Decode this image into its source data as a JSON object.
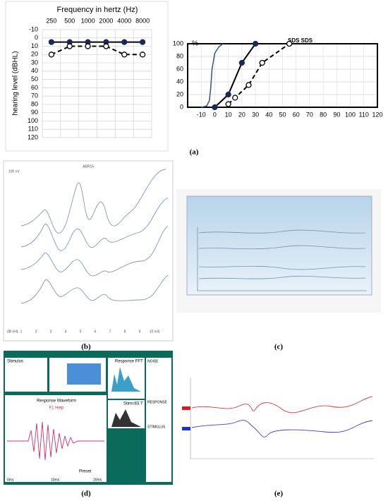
{
  "chart_data": [
    {
      "type": "line",
      "title": "Frequency in hertz (Hz)",
      "y_label": "hearing level (dBHL)",
      "categories": [
        "250",
        "500",
        "1000",
        "2000",
        "4000",
        "8000"
      ],
      "x_axis_position": "top",
      "ylim": [
        -10,
        120
      ],
      "y_inverted": true,
      "yticks": [
        -10,
        0,
        10,
        20,
        30,
        40,
        50,
        60,
        70,
        80,
        90,
        100,
        110,
        120
      ],
      "grid": true,
      "series": [
        {
          "color": "#000000",
          "marker_color": "#1b2a55",
          "marker": "filled",
          "dashed": false,
          "values": [
            5,
            5,
            5,
            5,
            5,
            5
          ]
        },
        {
          "color": "#000000",
          "marker_color": "#000000",
          "marker": "open",
          "dashed": true,
          "values": [
            20,
            10,
            10,
            10,
            20,
            20
          ]
        }
      ]
    },
    {
      "type": "line",
      "y_label": "%",
      "annotation": "SDS SDS",
      "xlim": [
        -20,
        120
      ],
      "xticks": [
        -10,
        0,
        10,
        20,
        30,
        40,
        50,
        60,
        70,
        80,
        90,
        100,
        110,
        120
      ],
      "ylim": [
        0,
        100
      ],
      "yticks": [
        0,
        20,
        40,
        60,
        80,
        100
      ],
      "grid": true,
      "series": [
        {
          "color": "#34518c",
          "marker": "none",
          "dashed": false,
          "x": [
            -10,
            -6,
            -4,
            -3,
            -2,
            0,
            3,
            6
          ],
          "values": [
            0,
            2,
            10,
            30,
            60,
            85,
            95,
            100
          ]
        },
        {
          "color": "#000000",
          "marker_color": "#1b2a55",
          "marker": "filled",
          "dashed": false,
          "x": [
            0,
            10,
            20,
            30,
            55
          ],
          "values": [
            0,
            20,
            70,
            100,
            100
          ]
        },
        {
          "color": "#000000",
          "marker_color": "#000000",
          "marker": "open",
          "dashed": true,
          "x": [
            10,
            15,
            25,
            35,
            55
          ],
          "values": [
            5,
            15,
            35,
            70,
            100
          ]
        }
      ]
    }
  ],
  "panels": {
    "a": {
      "label": "(a)"
    },
    "b": {
      "label": "(b)",
      "title": "ABR15",
      "scale": "100 nV",
      "unit": "dB nHL",
      "ticks": [
        "1",
        "2",
        "3",
        "4",
        "5",
        "6",
        "7",
        "8",
        "9",
        "10 mS"
      ]
    },
    "c": {
      "label": "(c)"
    },
    "d": {
      "label": "(d)",
      "stimulus": "Stimulus",
      "fft": "Response FFT",
      "waveform": "Response Waveform",
      "help": "F1 Help",
      "preset": "Preset",
      "stim": "Stim=83.7",
      "t0": "0ms",
      "t1": "10ms",
      "t2": "20ms",
      "noise": "NOISE",
      "response": "RESPONSE",
      "stimulus2": "STIMULUS"
    },
    "e": {
      "label": "(e)"
    }
  }
}
